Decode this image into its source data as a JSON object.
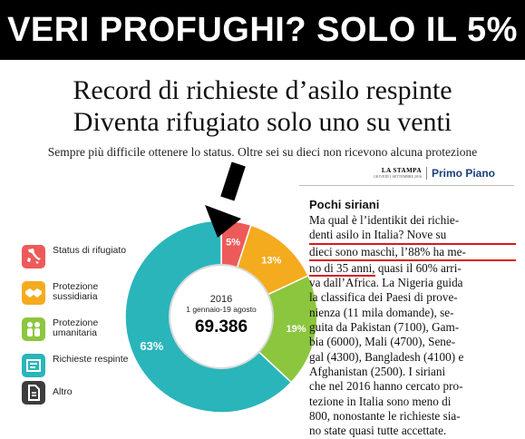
{
  "banner": {
    "text": "VERI PROFUGHI? SOLO IL 5%"
  },
  "headline": {
    "line1": "Record di richieste d’asilo respinte",
    "line2": "Diventa rifugiato solo uno su venti"
  },
  "subhead": "Sempre più difficile ottenere lo status. Oltre sei su dieci non ricevono alcuna protezione",
  "masthead": {
    "name": "LA STAMPA",
    "date": "GIOVEDÌ 1 SETTEMBRE 2016"
  },
  "section": "Primo Piano",
  "legend": [
    {
      "label": "Status di rifugiato",
      "icon": "italy-map-icon",
      "color": "#ee5a5a"
    },
    {
      "label": "Protezione sussidiaria",
      "icon": "handshake-icon",
      "color": "#f5ab1e"
    },
    {
      "label": "Protezione umanitaria",
      "icon": "people-icon",
      "color": "#8cc63e"
    },
    {
      "label": "Richieste respinte",
      "icon": "stamp-icon",
      "color": "#2ab5bb"
    },
    {
      "label": "Altro",
      "icon": "document-icon",
      "color": "#3d3d3d"
    }
  ],
  "chart_data": {
    "type": "pie",
    "center_year": "2016",
    "center_period": "1 gennaio-19 agosto",
    "center_total": "69.386",
    "slices": [
      {
        "label": "Status di rifugiato",
        "value": 5,
        "display": "5%",
        "color": "#ee5a5a"
      },
      {
        "label": "Protezione sussidiaria",
        "value": 13,
        "display": "13%",
        "color": "#f5ab1e"
      },
      {
        "label": "Protezione umanitaria",
        "value": 19,
        "display": "19%",
        "color": "#8cc63e"
      },
      {
        "label": "Richieste respinte",
        "value": 63,
        "display": "63%",
        "color": "#2ab5bb"
      }
    ]
  },
  "article": {
    "title": "Pochi siriani",
    "lines": [
      "Ma qual è l’identikit dei richie-",
      "denti asilo in Italia? Nove su",
      "dieci sono maschi, l’88% ha me-",
      "no di 35 anni, quasi il 60% arri-",
      "va dall’Africa. La Nigeria guida",
      "la classifica dei Paesi di prove-",
      "nienza (11 mila domande), se-",
      "guita da Pakistan (7100), Gam-",
      "bia (6000), Mali (4700), Sene-",
      "gal (4300), Bangladesh (4100) e",
      "Afghanistan (2500). I siriani",
      "che nel 2016 hanno cercato pro-",
      "tezione in Italia sono meno di",
      "800, nonostante le richieste sia-",
      "no state quasi tutte accettate."
    ]
  }
}
